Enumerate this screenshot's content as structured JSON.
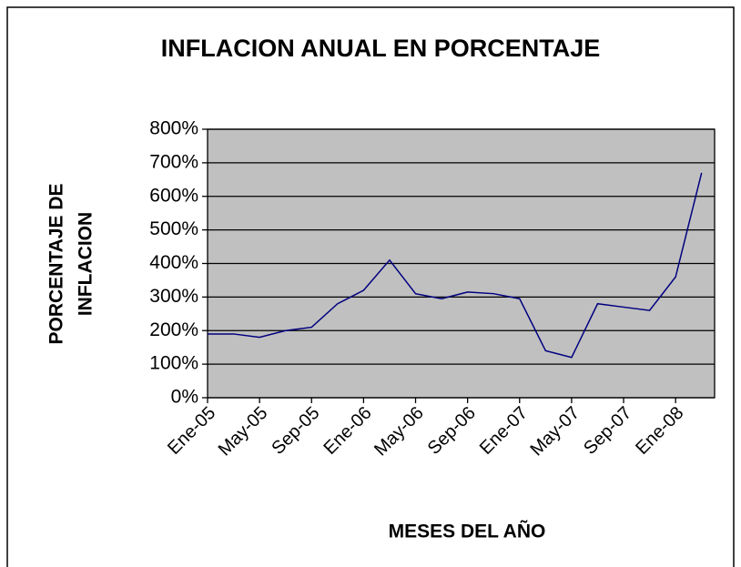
{
  "chart_data": {
    "type": "line",
    "title": "INFLACION ANUAL EN PORCENTAJE",
    "x_label": "MESES DEL AÑO",
    "y_label": [
      "PORCENTAJE DE",
      "INFLACION"
    ],
    "categories": [
      "Ene-05",
      null,
      "May-05",
      null,
      "Sep-05",
      null,
      "Ene-06",
      null,
      "May-06",
      null,
      "Sep-06",
      null,
      "Ene-07",
      null,
      "May-07",
      null,
      "Sep-07",
      null,
      "Ene-08",
      null
    ],
    "series": [
      {
        "color": "#000080",
        "values": [
          190,
          190,
          180,
          200,
          210,
          280,
          320,
          410,
          310,
          295,
          315,
          310,
          295,
          140,
          120,
          280,
          270,
          260,
          360,
          670
        ]
      }
    ],
    "ylim": [
      0,
      800
    ],
    "yticks": [
      {
        "value": 0,
        "label": "0%"
      },
      {
        "value": 100,
        "label": "100%"
      },
      {
        "value": 200,
        "label": "200%"
      },
      {
        "value": 300,
        "label": "300%"
      },
      {
        "value": 400,
        "label": "400%"
      },
      {
        "value": 500,
        "label": "500%"
      },
      {
        "value": 600,
        "label": "600%"
      },
      {
        "value": 700,
        "label": "700%"
      },
      {
        "value": 800,
        "label": "800%"
      }
    ],
    "grid": true,
    "plot_background": "#c0c0c0"
  }
}
